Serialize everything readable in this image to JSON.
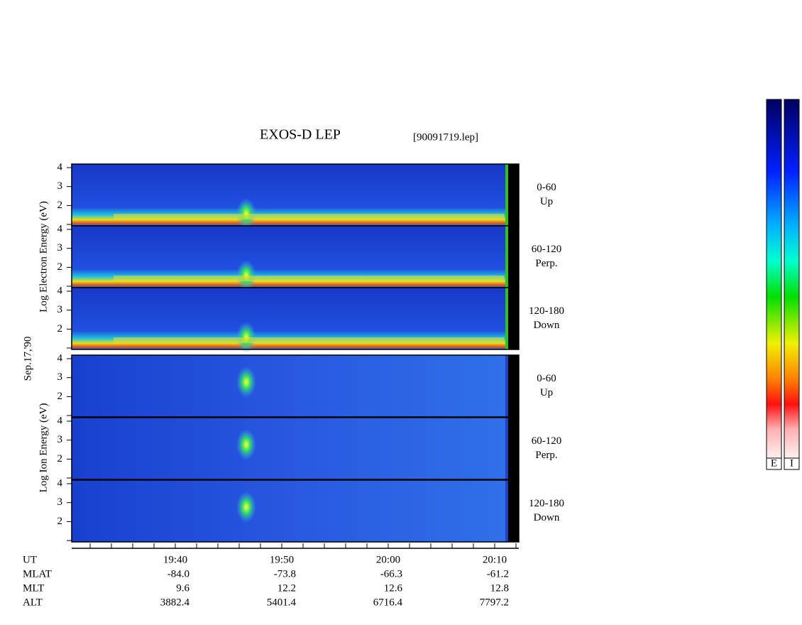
{
  "header": {
    "title": "EXOS-D LEP",
    "file": "[90091719.lep]",
    "date": "Sep.17,'90"
  },
  "electron": {
    "axis_label": "Log Electron Energy (eV)",
    "panels": [
      {
        "angle": "0-60",
        "direction": "Up",
        "ticks": [
          4,
          3,
          2
        ]
      },
      {
        "angle": "60-120",
        "direction": "Perp.",
        "ticks": [
          4,
          3,
          2
        ]
      },
      {
        "angle": "120-180",
        "direction": "Down",
        "ticks": [
          4,
          3,
          2
        ]
      }
    ]
  },
  "ion": {
    "axis_label": "Log Ion Energy (eV)",
    "panels": [
      {
        "angle": "0-60",
        "direction": "Up",
        "ticks": [
          4,
          3,
          2
        ]
      },
      {
        "angle": "60-120",
        "direction": "Perp.",
        "ticks": [
          4,
          3,
          2
        ]
      },
      {
        "angle": "120-180",
        "direction": "Down",
        "ticks": [
          4,
          3,
          2
        ]
      }
    ]
  },
  "footer": {
    "rows": [
      {
        "label": "UT",
        "values": [
          "19:40",
          "19:50",
          "20:00",
          "20:10"
        ]
      },
      {
        "label": "MLAT",
        "values": [
          "-84.0",
          "-73.8",
          "-66.3",
          "-61.2"
        ]
      },
      {
        "label": "MLT",
        "values": [
          "9.6",
          "12.2",
          "12.6",
          "12.8"
        ]
      },
      {
        "label": "ALT",
        "values": [
          "3882.4",
          "5401.4",
          "6716.4",
          "7797.2"
        ]
      }
    ]
  },
  "colorbars": [
    "E",
    "I"
  ]
}
